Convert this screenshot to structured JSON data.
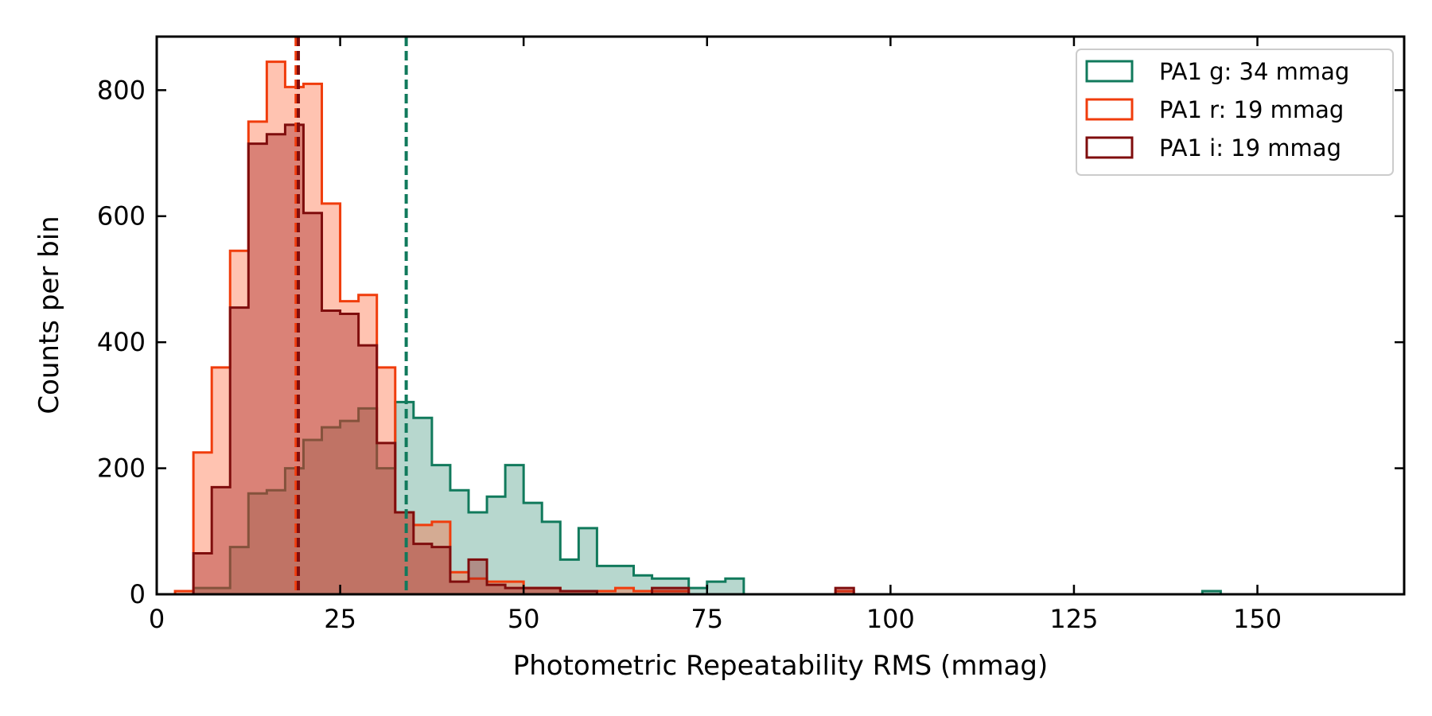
{
  "chart_data": {
    "type": "histogram",
    "title": "",
    "xlabel": "Photometric Repeatability RMS (mmag)",
    "ylabel": "Counts per bin",
    "xlim": [
      0,
      170
    ],
    "ylim": [
      0,
      885
    ],
    "xticks": [
      0,
      25,
      50,
      75,
      100,
      125,
      150
    ],
    "yticks": [
      0,
      200,
      400,
      600,
      800
    ],
    "grid": false,
    "legend_position": "top-right",
    "histtype": "stepfilled with step outline",
    "series": [
      {
        "name": "PA1 g: 34 mmag",
        "color": "#117a5c",
        "fill_color": "#117a5c",
        "fill_opacity": 0.3,
        "bins": [
          [
            2.5,
            5,
            0
          ],
          [
            5,
            7.5,
            10
          ],
          [
            7.5,
            10,
            10
          ],
          [
            10,
            12.5,
            75
          ],
          [
            12.5,
            15,
            160
          ],
          [
            15,
            17.5,
            165
          ],
          [
            17.5,
            20,
            200
          ],
          [
            20,
            22.5,
            245
          ],
          [
            22.5,
            25,
            265
          ],
          [
            25,
            27.5,
            275
          ],
          [
            27.5,
            30,
            295
          ],
          [
            30,
            32.5,
            200
          ],
          [
            32.5,
            35,
            305
          ],
          [
            35,
            37.5,
            280
          ],
          [
            37.5,
            40,
            205
          ],
          [
            40,
            42.5,
            165
          ],
          [
            42.5,
            45,
            130
          ],
          [
            45,
            47.5,
            155
          ],
          [
            47.5,
            50,
            205
          ],
          [
            50,
            52.5,
            145
          ],
          [
            52.5,
            55,
            115
          ],
          [
            55,
            57.5,
            55
          ],
          [
            57.5,
            60,
            105
          ],
          [
            60,
            62.5,
            45
          ],
          [
            62.5,
            65,
            45
          ],
          [
            65,
            67.5,
            30
          ],
          [
            67.5,
            70,
            25
          ],
          [
            70,
            72.5,
            25
          ],
          [
            72.5,
            75,
            10
          ],
          [
            75,
            77.5,
            20
          ],
          [
            77.5,
            80,
            25
          ],
          [
            142.5,
            145,
            5
          ]
        ],
        "vline": 34
      },
      {
        "name": "PA1 r: 19 mmag",
        "color": "#f03c0c",
        "fill_color": "#ff6a3d",
        "fill_opacity": 0.4,
        "bins": [
          [
            2.5,
            5,
            5
          ],
          [
            5,
            7.5,
            225
          ],
          [
            7.5,
            10,
            360
          ],
          [
            10,
            12.5,
            545
          ],
          [
            12.5,
            15,
            750
          ],
          [
            15,
            17.5,
            845
          ],
          [
            17.5,
            20,
            805
          ],
          [
            20,
            22.5,
            810
          ],
          [
            22.5,
            25,
            620
          ],
          [
            25,
            27.5,
            465
          ],
          [
            27.5,
            30,
            475
          ],
          [
            30,
            32.5,
            360
          ],
          [
            32.5,
            35,
            130
          ],
          [
            35,
            37.5,
            110
          ],
          [
            37.5,
            40,
            115
          ],
          [
            40,
            42.5,
            35
          ],
          [
            42.5,
            45,
            25
          ],
          [
            45,
            47.5,
            20
          ],
          [
            47.5,
            50,
            20
          ],
          [
            50,
            52.5,
            10
          ],
          [
            52.5,
            55,
            10
          ],
          [
            55,
            57.5,
            5
          ],
          [
            57.5,
            60,
            5
          ],
          [
            60,
            62.5,
            5
          ],
          [
            62.5,
            65,
            10
          ],
          [
            65,
            67.5,
            5
          ],
          [
            67.5,
            70,
            5
          ],
          [
            70,
            72.5,
            5
          ],
          [
            92.5,
            95,
            5
          ]
        ],
        "vline": 19
      },
      {
        "name": "PA1 i: 19 mmag",
        "color": "#7f0d0d",
        "fill_color": "#a32020",
        "fill_opacity": 0.4,
        "bins": [
          [
            5,
            7.5,
            65
          ],
          [
            7.5,
            10,
            170
          ],
          [
            10,
            12.5,
            455
          ],
          [
            12.5,
            15,
            715
          ],
          [
            15,
            17.5,
            730
          ],
          [
            17.5,
            20,
            745
          ],
          [
            20,
            22.5,
            605
          ],
          [
            22.5,
            25,
            450
          ],
          [
            25,
            27.5,
            445
          ],
          [
            27.5,
            30,
            395
          ],
          [
            30,
            32.5,
            240
          ],
          [
            32.5,
            35,
            130
          ],
          [
            35,
            37.5,
            80
          ],
          [
            37.5,
            40,
            75
          ],
          [
            40,
            42.5,
            20
          ],
          [
            42.5,
            45,
            55
          ],
          [
            45,
            47.5,
            15
          ],
          [
            47.5,
            50,
            10
          ],
          [
            50,
            52.5,
            10
          ],
          [
            52.5,
            55,
            10
          ],
          [
            55,
            57.5,
            5
          ],
          [
            57.5,
            60,
            5
          ],
          [
            67.5,
            72.5,
            10
          ],
          [
            92.5,
            95,
            10
          ]
        ],
        "vline": 19.3
      }
    ]
  }
}
